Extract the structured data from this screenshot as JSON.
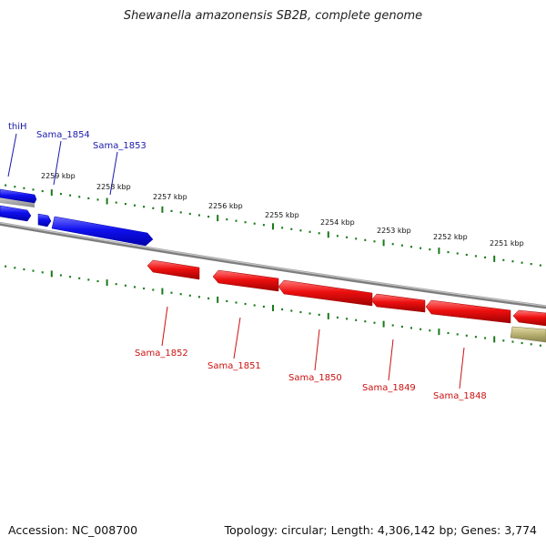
{
  "title": "Shewanella amazonensis SB2B, complete genome",
  "footer": {
    "accession": "Accession: NC_008700",
    "summary": "Topology: circular; Length: 4,306,142 bp; Genes: 3,774"
  },
  "colors": {
    "forward_gene": "#1111dd",
    "reverse_gene": "#dd1111",
    "other_feature": "#b8b070",
    "backbone": "#888888",
    "tick": "#1a7a1a",
    "forward_label": "#1a1aaa",
    "reverse_label": "#cc1111"
  },
  "scale_labels": [
    "2259 kbp",
    "2258 kbp",
    "2257 kbp",
    "2256 kbp",
    "2255 kbp",
    "2254 kbp",
    "2253 kbp",
    "2252 kbp",
    "2251 kbp"
  ],
  "forward_genes": [
    {
      "name": "thiH"
    },
    {
      "name": "Sama_1854"
    },
    {
      "name": "Sama_1853"
    }
  ],
  "reverse_genes": [
    {
      "name": "Sama_1852"
    },
    {
      "name": "Sama_1851"
    },
    {
      "name": "Sama_1850"
    },
    {
      "name": "Sama_1849"
    },
    {
      "name": "Sama_1848"
    }
  ]
}
